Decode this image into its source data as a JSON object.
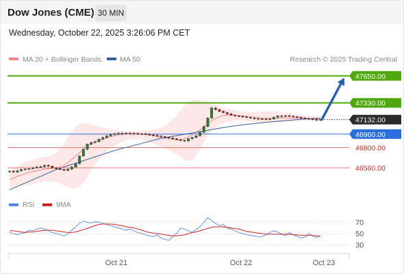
{
  "header": {
    "title": "Dow Jones (CME)",
    "timeframe": "30 MIN",
    "datetime": "Wednesday, October 22, 2025 3:26:06 PM CET"
  },
  "legend": {
    "ma20": "MA 20 + Bollinger Bands",
    "ma50": "MA 50",
    "credit": "Research © 2025 Trading Central",
    "rsi": "RSI",
    "ma9": "9MA"
  },
  "colors": {
    "green": "#4fa80d",
    "blue": "#2a6fdb",
    "red": "#e07070",
    "ma20": "#f08a8a",
    "ma50": "#335d9b",
    "band_fill": "#fde3e3",
    "rsi": "#5b86d9",
    "rsi_ma": "#cc2222",
    "arrow": "#2c5ea8",
    "up": "#2e7d32",
    "down": "#b71c1c"
  },
  "chart_data": [
    {
      "type": "candlestick",
      "ylim": [
        46260,
        47770
      ],
      "x_ticks": [
        "Oct 21",
        "Oct 22",
        "Oct 23"
      ],
      "levels": [
        {
          "label": "47650.00",
          "value": 47650,
          "kind": "resistance"
        },
        {
          "label": "47330.00",
          "value": 47330,
          "kind": "resistance"
        },
        {
          "label": "47132.00",
          "value": 47132,
          "kind": "last"
        },
        {
          "label": "46960.00",
          "value": 46960,
          "kind": "support-key"
        },
        {
          "label": "46800.00",
          "value": 46800,
          "kind": "support"
        },
        {
          "label": "46560.00",
          "value": 46560,
          "kind": "support"
        }
      ],
      "close": [
        46520,
        46510,
        46525,
        46540,
        46545,
        46550,
        46560,
        46570,
        46575,
        46590,
        46580,
        46560,
        46550,
        46540,
        46530,
        46545,
        46570,
        46610,
        46700,
        46780,
        46840,
        46860,
        46870,
        46900,
        46920,
        46940,
        46955,
        46965,
        46970,
        46968,
        46972,
        46970,
        46968,
        46960,
        46965,
        46958,
        46950,
        46945,
        46938,
        46930,
        46922,
        46915,
        46905,
        46895,
        46885,
        46880,
        46905,
        46920,
        46940,
        46980,
        47050,
        47150,
        47270,
        47250,
        47230,
        47215,
        47200,
        47185,
        47175,
        47170,
        47165,
        47158,
        47150,
        47145,
        47140,
        47138,
        47135,
        47140,
        47160,
        47175,
        47170,
        47178,
        47172,
        47165,
        47160,
        47150,
        47145,
        47140,
        47135,
        47125,
        47132
      ],
      "ma20": [
        46420,
        46440,
        46460,
        46475,
        46490,
        46505,
        46515,
        46525,
        46535,
        46545,
        46550,
        46555,
        46560,
        46570,
        46590,
        46620,
        46660,
        46700,
        46740,
        46780,
        46815,
        46840,
        46865,
        46885,
        46900,
        46915,
        46930,
        46940,
        46950,
        46955,
        46960,
        46962,
        46963,
        46962,
        46960,
        46955,
        46950,
        46940,
        46930,
        46920,
        46912,
        46905,
        46898,
        46890,
        46892,
        46905,
        46925,
        46950,
        46980,
        47010,
        47045,
        47085,
        47120,
        47145,
        47165,
        47178,
        47185,
        47188,
        47185,
        47180,
        47175,
        47170,
        47165,
        47160,
        47155,
        47150,
        47148,
        47147,
        47147,
        47148,
        47150,
        47150,
        47150,
        47150,
        47148,
        47146,
        47144,
        47142,
        47140,
        47138,
        47136
      ],
      "ma50": [
        46300,
        46320,
        46340,
        46360,
        46380,
        46400,
        46420,
        46440,
        46460,
        46480,
        46500,
        46520,
        46540,
        46555,
        46570,
        46585,
        46600,
        46615,
        46630,
        46645,
        46660,
        46675,
        46690,
        46705,
        46720,
        46735,
        46750,
        46765,
        46778,
        46790,
        46802,
        46814,
        46826,
        46838,
        46850,
        46862,
        46874,
        46886,
        46898,
        46910,
        46918,
        46926,
        46934,
        46942,
        46950,
        46958,
        46966,
        46974,
        46982,
        46990,
        46998,
        47006,
        47014,
        47022,
        47030,
        47038,
        47045,
        47052,
        47058,
        47064,
        47070,
        47075,
        47080,
        47085,
        47090,
        47095,
        47100,
        47104,
        47108,
        47112,
        47116,
        47120,
        47124,
        47128,
        47132,
        47135,
        47138,
        47141,
        47144,
        47147,
        47150
      ],
      "bb_upper": [
        46520,
        46550,
        46580,
        46610,
        46630,
        46650,
        46660,
        46670,
        46680,
        46690,
        46700,
        46710,
        46740,
        46790,
        46850,
        46920,
        46990,
        47050,
        47080,
        47090,
        47085,
        47075,
        47060,
        47050,
        47040,
        47030,
        47022,
        47015,
        47008,
        47002,
        46998,
        46995,
        46994,
        46995,
        46998,
        47002,
        47008,
        47015,
        47025,
        47040,
        47060,
        47090,
        47130,
        47180,
        47240,
        47300,
        47340,
        47360,
        47365,
        47360,
        47350,
        47335,
        47320,
        47305,
        47290,
        47275,
        47262,
        47250,
        47240,
        47232,
        47226,
        47222,
        47220,
        47220,
        47222,
        47226,
        47230,
        47232,
        47230,
        47226,
        47220,
        47214,
        47208,
        47202,
        47196,
        47190,
        47184,
        47180,
        47176,
        47172,
        47170
      ],
      "bb_lower": [
        46320,
        46330,
        46340,
        46345,
        46350,
        46360,
        46370,
        46380,
        46390,
        46400,
        46400,
        46400,
        46390,
        46370,
        46350,
        46330,
        46320,
        46320,
        46340,
        46380,
        46450,
        46530,
        46600,
        46660,
        46710,
        46750,
        46790,
        46820,
        46850,
        46870,
        46885,
        46895,
        46900,
        46900,
        46895,
        46885,
        46870,
        46850,
        46830,
        46810,
        46790,
        46770,
        46750,
        46720,
        46690,
        46660,
        46640,
        46650,
        46700,
        46780,
        46860,
        46940,
        47000,
        47040,
        47070,
        47090,
        47105,
        47115,
        47120,
        47122,
        47120,
        47115,
        47110,
        47105,
        47100,
        47098,
        47097,
        47098,
        47100,
        47102,
        47104,
        47106,
        47108,
        47110,
        47112,
        47114,
        47116,
        47118,
        47120,
        47122,
        47124
      ]
    },
    {
      "type": "line",
      "ylim": [
        20,
        85
      ],
      "y_ticks": [
        70,
        50,
        30
      ],
      "rsi": [
        52,
        50,
        48,
        50,
        52,
        56,
        55,
        58,
        60,
        58,
        55,
        52,
        50,
        48,
        46,
        50,
        56,
        62,
        68,
        72,
        70,
        69,
        71,
        70,
        68,
        66,
        64,
        62,
        60,
        58,
        56,
        58,
        55,
        52,
        50,
        48,
        46,
        45,
        48,
        42,
        40,
        38,
        45,
        50,
        60,
        58,
        55,
        52,
        57,
        62,
        70,
        78,
        73,
        68,
        64,
        66,
        60,
        58,
        55,
        52,
        50,
        48,
        47,
        46,
        44,
        45,
        48,
        52,
        55,
        53,
        49,
        46,
        52,
        48,
        45,
        42,
        44,
        50,
        46,
        43,
        46
      ],
      "rsi_ma": [
        55,
        55,
        54,
        53,
        52,
        53,
        53,
        54,
        55,
        56,
        56,
        56,
        55,
        54,
        53,
        52,
        52,
        53,
        55,
        57,
        59,
        62,
        64,
        66,
        67,
        67,
        67,
        66,
        65,
        64,
        62,
        61,
        60,
        58,
        56,
        54,
        52,
        51,
        50,
        49,
        48,
        47,
        46,
        46,
        47,
        48,
        50,
        52,
        53,
        55,
        57,
        59,
        61,
        62,
        62,
        62,
        61,
        60,
        59,
        58,
        56,
        54,
        53,
        52,
        51,
        50,
        49,
        49,
        49,
        49,
        49,
        49,
        49,
        48,
        48,
        47,
        47,
        47,
        47,
        46,
        46
      ]
    }
  ]
}
